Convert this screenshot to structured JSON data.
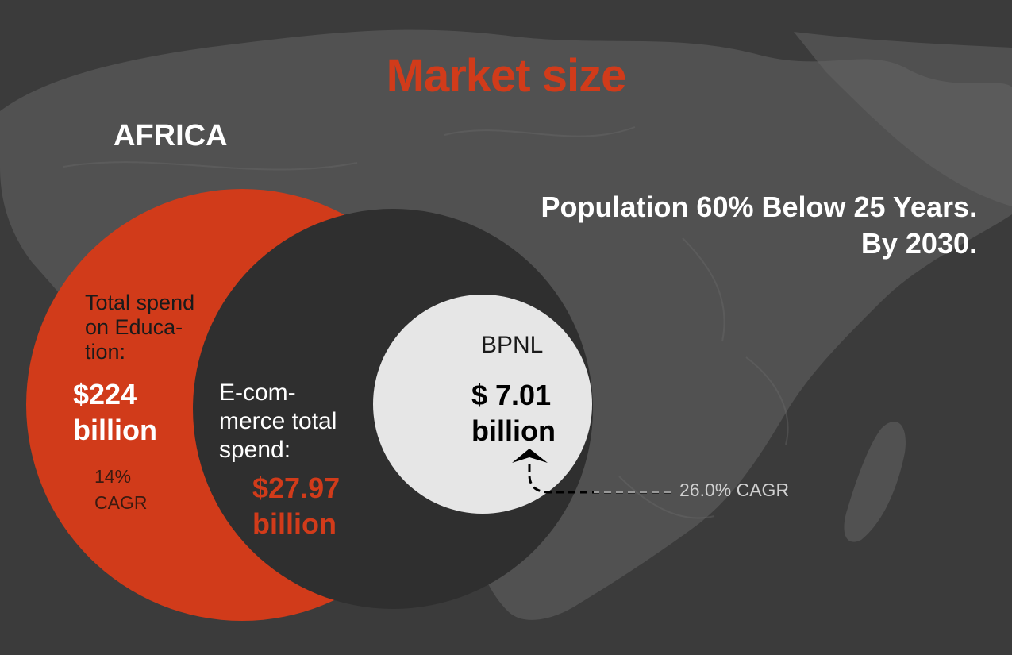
{
  "title": "Market size",
  "region": "AFRICA",
  "population_note": "Population 60% Below 25 Years. By 2030.",
  "colors": {
    "accent": "#d13b1a",
    "background": "#3b3b3b",
    "ecommerce_circle": "#2f2f2f",
    "bpnl_circle": "#e6e6e6",
    "white": "#ffffff",
    "black": "#000000",
    "cagr_text": "#d0d0d0"
  },
  "diagram": {
    "education": {
      "label": "Total spend on Educa- tion:",
      "value": "$224 billion",
      "cagr": "14% CAGR"
    },
    "ecommerce": {
      "label": "E-com- merce total spend:",
      "value": "$27.97 billion"
    },
    "bpnl": {
      "label": "BPNL",
      "value": "$ 7.01 billion",
      "cagr": "26.0%  CAGR"
    }
  },
  "icons": [
    "arrow-up-icon"
  ]
}
